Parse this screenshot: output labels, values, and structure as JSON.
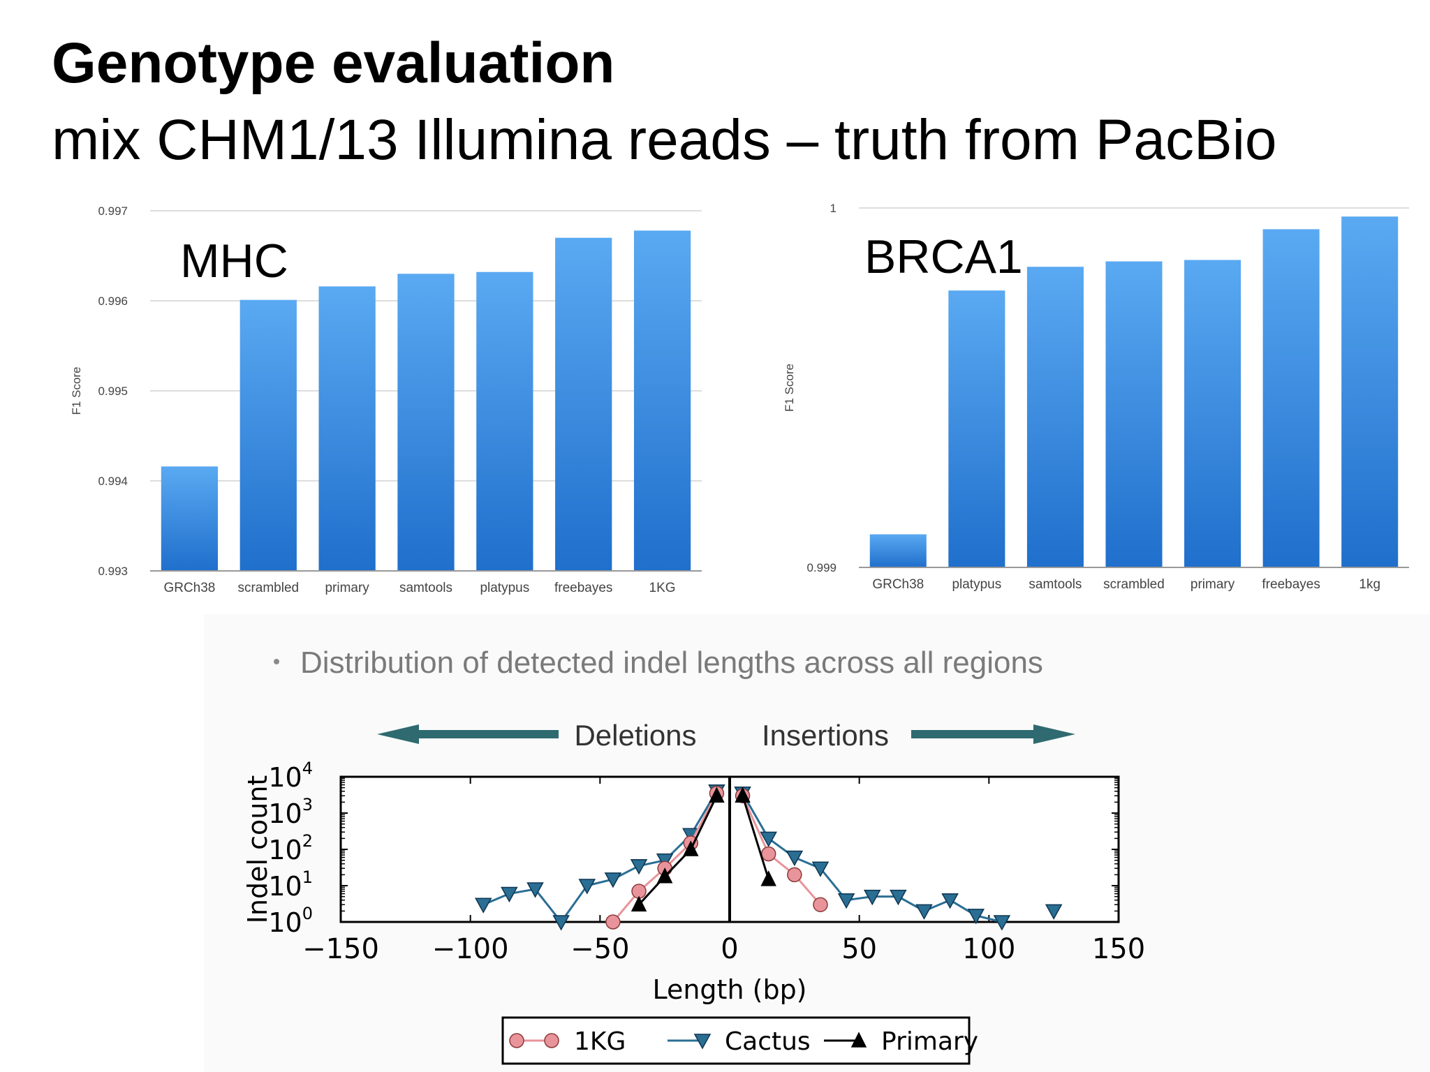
{
  "slide": {
    "title": "Genotype evaluation",
    "subtitle": "mix CHM1/13 Illumina reads – truth from PacBio",
    "bullet": "Distribution of detected indel lengths across all regions",
    "deletions_label": "Deletions",
    "insertions_label": "Insertions"
  },
  "colors": {
    "bar_top": "#5aa9f2",
    "bar_bottom": "#1f6fcc",
    "arrow": "#2e6a6f",
    "kg": "#e8949a",
    "cactus": "#2a6e94",
    "primary": "#000000"
  },
  "chart_data": [
    {
      "type": "bar",
      "panel_label": "MHC",
      "ylabel": "F1 Score",
      "categories": [
        "GRCh38",
        "scrambled",
        "primary",
        "samtools",
        "platypus",
        "freebayes",
        "1KG"
      ],
      "values": [
        0.99416,
        0.99601,
        0.99616,
        0.9963,
        0.99632,
        0.9967,
        0.99678
      ],
      "ylim": [
        0.993,
        0.997
      ],
      "yticks": [
        "0.993",
        "0.994",
        "0.995",
        "0.996",
        "0.997"
      ],
      "grid": true
    },
    {
      "type": "bar",
      "panel_label": "BRCA1",
      "ylabel": "F1 Score",
      "categories": [
        "GRCh38",
        "platypus",
        "samtools",
        "scrambled",
        "primary",
        "freebayes",
        "1kg"
      ],
      "values": [
        0.9990921,
        0.9997704,
        0.9998364,
        0.9998514,
        0.9998554,
        0.9999409,
        0.9999762
      ],
      "ylim": [
        0.999,
        1.0
      ],
      "yticks": [
        "0.999",
        "1"
      ],
      "grid": true
    },
    {
      "type": "line",
      "xlabel": "Length (bp)",
      "ylabel": "Indel count",
      "xlim": [
        -150,
        150
      ],
      "ylim": [
        1,
        10000
      ],
      "yscale": "log",
      "xticks": [
        "−150",
        "−100",
        "−50",
        "0",
        "50",
        "100",
        "150"
      ],
      "yticks": [
        "10",
        "10",
        "10",
        "10",
        "10"
      ],
      "ytick_exponents": [
        "0",
        "1",
        "2",
        "3",
        "4"
      ],
      "legend_position": "bottom",
      "series": [
        {
          "name": "1KG",
          "marker": "circle",
          "segments": [
            {
              "x": [
                -45,
                -35,
                -25,
                -15,
                -5
              ],
              "y": [
                1,
                7,
                30,
                150,
                3500
              ]
            },
            {
              "x": [
                5,
                15,
                25,
                35
              ],
              "y": [
                3000,
                75,
                20,
                3
              ]
            }
          ]
        },
        {
          "name": "Cactus",
          "marker": "triangle-down",
          "segments": [
            {
              "x": [
                -95,
                -85,
                -75,
                -65,
                -55,
                -45,
                -35,
                -25,
                -15,
                -5
              ],
              "y": [
                3,
                6,
                8,
                1,
                10,
                15,
                35,
                50,
                250,
                4000
              ]
            },
            {
              "x": [
                5,
                15,
                25,
                35,
                45,
                55,
                65,
                75,
                85,
                95,
                105
              ],
              "y": [
                3500,
                200,
                60,
                30,
                4,
                5,
                5,
                2,
                4,
                1.5,
                1
              ]
            },
            {
              "x": [
                125
              ],
              "y": [
                2
              ]
            }
          ]
        },
        {
          "name": "Primary",
          "marker": "triangle-up",
          "segments": [
            {
              "x": [
                -35,
                -25,
                -15,
                -5
              ],
              "y": [
                3,
                18,
                100,
                3000
              ]
            },
            {
              "x": [
                5,
                15
              ],
              "y": [
                3000,
                15
              ]
            }
          ]
        }
      ]
    }
  ]
}
